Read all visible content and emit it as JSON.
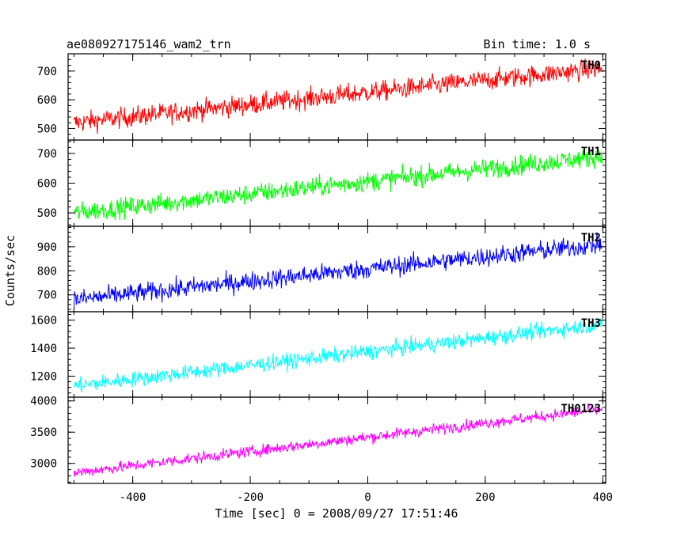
{
  "header": {
    "title": "ae080927175146_wam2_trn",
    "bin_time": "Bin time: 1.0 s"
  },
  "chart_data": {
    "type": "line",
    "title": "ae080927175146_wam2_trn",
    "xlabel": "Time [sec] 0 = 2008/09/27 17:51:46",
    "ylabel": "Counts/sec",
    "xlim": [
      -510,
      405
    ],
    "x_ticks": [
      -400,
      -200,
      0,
      200,
      400
    ],
    "x_range_data": [
      -500,
      399
    ],
    "grid": false,
    "panels": [
      {
        "name": "TH0",
        "color": "#ff0000",
        "ylim": [
          460,
          760
        ],
        "y_ticks": [
          500,
          600,
          700
        ],
        "start": 520,
        "end": 710,
        "noise": 35
      },
      {
        "name": "TH1",
        "color": "#00ff00",
        "ylim": [
          455,
          745
        ],
        "y_ticks": [
          500,
          600,
          700
        ],
        "start": 500,
        "end": 690,
        "noise": 33
      },
      {
        "name": "TH2",
        "color": "#0000ff",
        "ylim": [
          630,
          985
        ],
        "y_ticks": [
          700,
          800,
          900
        ],
        "start": 680,
        "end": 910,
        "noise": 40
      },
      {
        "name": "TH3",
        "color": "#00ffff",
        "ylim": [
          1050,
          1660
        ],
        "y_ticks": [
          1200,
          1400,
          1600
        ],
        "start": 1130,
        "end": 1570,
        "noise": 55
      },
      {
        "name": "TH0123",
        "color": "#ff00ff",
        "ylim": [
          2680,
          4060
        ],
        "y_ticks": [
          3000,
          3500,
          4000
        ],
        "start": 2850,
        "end": 3870,
        "noise": 90
      }
    ]
  }
}
